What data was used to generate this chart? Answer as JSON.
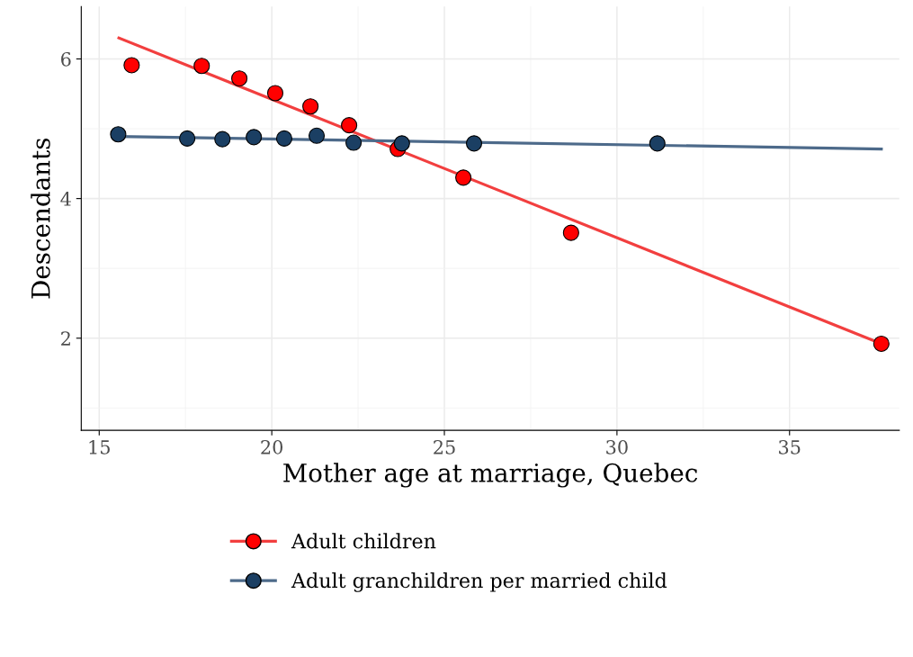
{
  "chart_data": {
    "type": "scatter",
    "xlabel": "Mother age at marriage, Quebec",
    "ylabel": "Descendants",
    "xlim": [
      14.48,
      38.18
    ],
    "ylim": [
      0.68,
      6.75
    ],
    "xticks": [
      15,
      20,
      25,
      30,
      35
    ],
    "yticks": [
      2,
      4,
      6
    ],
    "grid": true,
    "legend": "bottom",
    "series": [
      {
        "name": "Adult children",
        "marker": "circle",
        "color": "#ff0000",
        "x": [
          15.94,
          17.97,
          19.06,
          20.1,
          21.12,
          22.24,
          23.65,
          25.55,
          28.67,
          37.66
        ],
        "values": [
          5.91,
          5.9,
          5.72,
          5.51,
          5.32,
          5.05,
          4.71,
          4.3,
          3.51,
          1.92
        ]
      },
      {
        "name": "Adult granchildren per married child",
        "marker": "circle",
        "color": "#1b3f63",
        "x": [
          15.55,
          17.55,
          18.57,
          19.48,
          20.36,
          21.3,
          22.37,
          23.77,
          25.86,
          31.17
        ],
        "values": [
          4.92,
          4.86,
          4.85,
          4.88,
          4.86,
          4.9,
          4.8,
          4.79,
          4.79,
          4.79
        ]
      },
      {
        "type": "line",
        "color": "#f23f3f",
        "x": [
          15.57,
          37.66
        ],
        "values": [
          6.3,
          1.92
        ]
      },
      {
        "type": "line",
        "color": "#4d6a8a",
        "x": [
          15.55,
          37.66
        ],
        "values": [
          4.89,
          4.71
        ]
      }
    ]
  }
}
